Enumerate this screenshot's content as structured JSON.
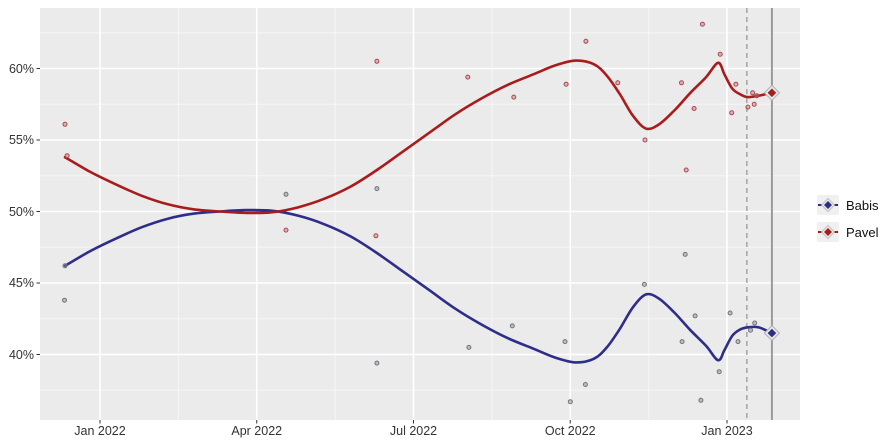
{
  "chart_data": {
    "type": "line",
    "title": "",
    "description": "Two-candidate poll-of-polls trend with individual poll scatter points",
    "x_unit": "month index (1 = Jan 2022, 13 = Jan 2023)",
    "x_ticks": [
      {
        "x": 1,
        "label": "Jan 2022"
      },
      {
        "x": 4,
        "label": "Apr 2022"
      },
      {
        "x": 7,
        "label": "Jul 2022"
      },
      {
        "x": 10,
        "label": "Oct 2022"
      },
      {
        "x": 13,
        "label": "Jan 2023"
      }
    ],
    "y_ticks": [
      {
        "v": 40,
        "label": "40%"
      },
      {
        "v": 45,
        "label": "45%"
      },
      {
        "v": 50,
        "label": "50%"
      },
      {
        "v": 55,
        "label": "55%"
      },
      {
        "v": 60,
        "label": "60%"
      }
    ],
    "x_domain": [
      -0.15,
      14.4
    ],
    "y_domain": [
      35.4,
      64.2
    ],
    "grid": true,
    "panel_bg": "#ebebeb",
    "grid_major_color": "#ffffff",
    "grid_minor_color": "rgba(255,255,255,0.55)",
    "axis_text_color": "#333333",
    "legend_position": "right",
    "vlines": [
      {
        "x": 13.38,
        "style": "dashed",
        "color": "#9a9a9a"
      },
      {
        "x": 13.86,
        "style": "solid",
        "color": "#9a9a9a"
      }
    ],
    "series": [
      {
        "name": "Babis",
        "line_color": "#2e2e8a",
        "point_stroke": "#74747e",
        "point_fill": "rgba(130,130,140,0.45)",
        "end_marker": {
          "x": 13.86,
          "v": 41.5
        },
        "trend": [
          [
            0.33,
            46.2
          ],
          [
            0.8,
            47.2
          ],
          [
            1.3,
            48.1
          ],
          [
            1.8,
            48.9
          ],
          [
            2.3,
            49.5
          ],
          [
            2.8,
            49.85
          ],
          [
            3.3,
            50.0
          ],
          [
            3.8,
            50.1
          ],
          [
            4.3,
            50.05
          ],
          [
            4.8,
            49.7
          ],
          [
            5.3,
            49.1
          ],
          [
            5.8,
            48.25
          ],
          [
            6.3,
            47.1
          ],
          [
            6.8,
            45.8
          ],
          [
            7.3,
            44.5
          ],
          [
            7.8,
            43.2
          ],
          [
            8.3,
            42.1
          ],
          [
            8.8,
            41.15
          ],
          [
            9.3,
            40.4
          ],
          [
            9.7,
            39.8
          ],
          [
            10.1,
            39.45
          ],
          [
            10.45,
            39.7
          ],
          [
            10.7,
            40.5
          ],
          [
            10.95,
            41.8
          ],
          [
            11.2,
            43.3
          ],
          [
            11.45,
            44.2
          ],
          [
            11.7,
            43.9
          ],
          [
            12.0,
            42.9
          ],
          [
            12.3,
            41.7
          ],
          [
            12.6,
            40.6
          ],
          [
            12.83,
            39.6
          ],
          [
            12.95,
            40.3
          ],
          [
            13.1,
            41.3
          ],
          [
            13.25,
            41.75
          ],
          [
            13.4,
            41.9
          ],
          [
            13.6,
            41.9
          ],
          [
            13.86,
            41.5
          ]
        ],
        "points": [
          [
            0.32,
            43.8
          ],
          [
            0.33,
            46.2
          ],
          [
            4.56,
            51.2
          ],
          [
            6.3,
            51.6
          ],
          [
            6.3,
            39.4
          ],
          [
            8.06,
            40.5
          ],
          [
            8.89,
            42.0
          ],
          [
            9.9,
            40.9
          ],
          [
            10.0,
            36.7
          ],
          [
            10.29,
            37.9
          ],
          [
            11.42,
            44.9
          ],
          [
            12.14,
            40.9
          ],
          [
            12.2,
            47.0
          ],
          [
            12.39,
            42.7
          ],
          [
            12.5,
            36.8
          ],
          [
            12.85,
            38.8
          ],
          [
            13.06,
            42.9
          ],
          [
            13.21,
            40.9
          ],
          [
            13.45,
            41.7
          ],
          [
            13.53,
            42.2
          ]
        ]
      },
      {
        "name": "Pavel",
        "line_color": "#a81c1c",
        "point_stroke": "#a84a52",
        "point_fill": "rgba(200,110,118,0.45)",
        "end_marker": {
          "x": 13.86,
          "v": 58.3
        },
        "trend": [
          [
            0.33,
            53.8
          ],
          [
            0.8,
            52.8
          ],
          [
            1.3,
            51.9
          ],
          [
            1.8,
            51.1
          ],
          [
            2.3,
            50.5
          ],
          [
            2.8,
            50.15
          ],
          [
            3.3,
            50.0
          ],
          [
            3.8,
            49.9
          ],
          [
            4.3,
            49.95
          ],
          [
            4.8,
            50.3
          ],
          [
            5.3,
            50.9
          ],
          [
            5.8,
            51.75
          ],
          [
            6.3,
            52.9
          ],
          [
            6.8,
            54.2
          ],
          [
            7.3,
            55.5
          ],
          [
            7.8,
            56.8
          ],
          [
            8.3,
            57.9
          ],
          [
            8.8,
            58.85
          ],
          [
            9.3,
            59.6
          ],
          [
            9.7,
            60.2
          ],
          [
            10.1,
            60.55
          ],
          [
            10.45,
            60.3
          ],
          [
            10.7,
            59.5
          ],
          [
            10.95,
            58.2
          ],
          [
            11.2,
            56.7
          ],
          [
            11.45,
            55.8
          ],
          [
            11.7,
            56.1
          ],
          [
            12.0,
            57.1
          ],
          [
            12.3,
            58.3
          ],
          [
            12.6,
            59.4
          ],
          [
            12.83,
            60.4
          ],
          [
            12.95,
            59.6
          ],
          [
            13.1,
            58.6
          ],
          [
            13.25,
            58.2
          ],
          [
            13.4,
            58.0
          ],
          [
            13.6,
            58.1
          ],
          [
            13.86,
            58.3
          ]
        ],
        "points": [
          [
            0.33,
            56.1
          ],
          [
            0.37,
            53.9
          ],
          [
            4.56,
            48.7
          ],
          [
            6.28,
            48.3
          ],
          [
            6.3,
            60.5
          ],
          [
            8.04,
            59.4
          ],
          [
            8.92,
            58.0
          ],
          [
            9.92,
            58.9
          ],
          [
            10.3,
            61.9
          ],
          [
            10.91,
            59.0
          ],
          [
            11.43,
            55.0
          ],
          [
            12.13,
            59.0
          ],
          [
            12.22,
            52.9
          ],
          [
            12.37,
            57.2
          ],
          [
            12.53,
            63.1
          ],
          [
            12.87,
            61.0
          ],
          [
            13.09,
            56.9
          ],
          [
            13.17,
            58.9
          ],
          [
            13.4,
            57.3
          ],
          [
            13.49,
            58.3
          ],
          [
            13.52,
            57.5
          ],
          [
            13.57,
            58.1
          ]
        ]
      }
    ]
  },
  "legend": {
    "items": [
      {
        "label": "Babis"
      },
      {
        "label": "Pavel"
      }
    ]
  }
}
